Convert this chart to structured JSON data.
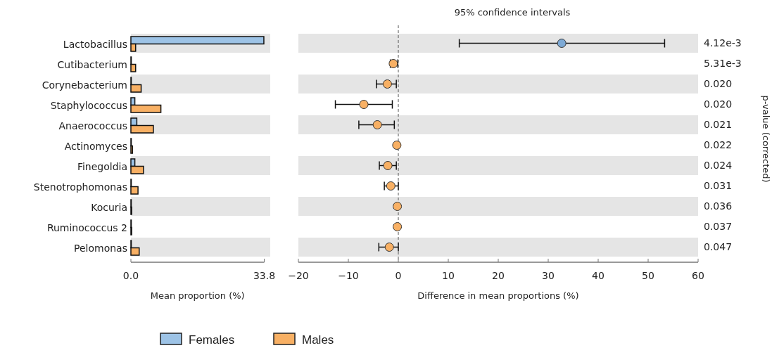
{
  "chart_data": [
    {
      "type": "bar",
      "orientation": "horizontal",
      "xlabel": "Mean proportion (%)",
      "legend": "bottom",
      "categories": [
        "Lactobacillus",
        "Cutibacterium",
        "Corynebacterium",
        "Staphylococcus",
        "Anaerococcus",
        "Actinomyces",
        "Finegoldia",
        "Stenotrophomonas",
        "Kocuria",
        "Ruminococcus 2",
        "Pelomonas"
      ],
      "series": [
        {
          "name": "Females",
          "color": "#9dc3e6",
          "values": [
            33.7,
            0.1,
            0.1,
            1.0,
            1.5,
            0.1,
            1.0,
            0.1,
            0.1,
            0.1,
            0.1
          ]
        },
        {
          "name": "Males",
          "color": "#f8b064",
          "values": [
            1.2,
            1.2,
            2.6,
            7.6,
            5.7,
            0.4,
            3.2,
            1.8,
            0.2,
            0.2,
            2.1
          ]
        }
      ],
      "xlim": [
        0,
        33.8
      ],
      "xticks": [
        {
          "value": 0,
          "label": "0.0"
        },
        33.8
      ]
    },
    {
      "type": "scatter",
      "orientation": "horizontal",
      "title": "95% confidence intervals",
      "xlabel": "Difference in mean proportions (%)",
      "y2label": "p-value (corrected)",
      "marker": "circle",
      "tick_labels": "x",
      "categories": [
        null,
        null,
        null,
        null,
        null,
        null,
        null,
        null,
        null,
        null,
        null
      ],
      "y2_categories": [
        "4.12e-3",
        "5.31e-3",
        "0.020",
        "0.020",
        "0.021",
        "0.022",
        "0.024",
        "0.031",
        "0.036",
        "0.037",
        "0.047"
      ],
      "values": [
        32.7,
        -1.0,
        -2.2,
        -6.9,
        -4.2,
        -0.3,
        -2.1,
        -1.5,
        -0.2,
        -0.2,
        -1.8
      ],
      "colors": [
        "#7eaad6",
        "#f8b064",
        "#f8b064",
        "#f8b064",
        "#f8b064",
        "#f8b064",
        "#f8b064",
        "#f8b064",
        "#f8b064",
        "#f8b064",
        "#f8b064"
      ],
      "errors": [
        [
          12.2,
          53.3
        ],
        [
          -1.6,
          -0.1
        ],
        [
          -4.4,
          -0.4
        ],
        [
          -12.6,
          -1.2
        ],
        [
          -7.9,
          -0.8
        ],
        null,
        [
          -3.8,
          -0.4
        ],
        [
          -2.8,
          0.0
        ],
        null,
        null,
        [
          -3.9,
          0.0
        ]
      ],
      "xlim": [
        -20,
        60
      ],
      "xticks": [
        {
          "value": -20,
          "label": "−20"
        },
        {
          "value": -10,
          "label": "−10"
        },
        0,
        10,
        20,
        30,
        40,
        50,
        60
      ],
      "ref_lines": [
        {
          "axis": "x",
          "value": 0,
          "line_style": "dashed",
          "color": "#555555"
        }
      ]
    }
  ]
}
